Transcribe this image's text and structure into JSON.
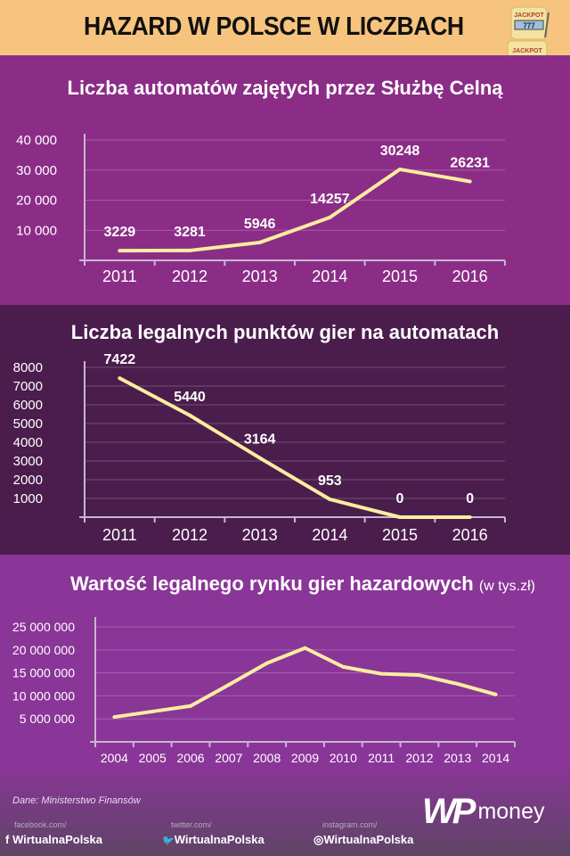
{
  "header": {
    "title": "HAZARD W POLSCE W LICZBACH",
    "slot_text": "JACKPOT",
    "slot_digits": "777"
  },
  "colors": {
    "line": "#fbeda0",
    "peach": "#f7c47f",
    "purple": "#8b2d87",
    "dark": "#4a1d4d"
  },
  "chart_data": [
    {
      "type": "line",
      "title": "Liczba automatów zajętych przez Służbę Celną",
      "categories": [
        "2011",
        "2012",
        "2013",
        "2014",
        "2015",
        "2016"
      ],
      "values": [
        3229,
        3281,
        5946,
        14257,
        30248,
        26231
      ],
      "labels": [
        "3229",
        "3281",
        "5946",
        "14257",
        "30248",
        "26231"
      ],
      "yticks": [
        10000,
        20000,
        30000,
        40000
      ],
      "ytick_labels": [
        "10 000",
        "20 000",
        "30 000",
        "40 000"
      ],
      "ylim": [
        0,
        40000
      ],
      "grid": true
    },
    {
      "type": "line",
      "title": "Liczba legalnych punktów gier na automatach",
      "categories": [
        "2011",
        "2012",
        "2013",
        "2014",
        "2015",
        "2016"
      ],
      "values": [
        7422,
        5440,
        3164,
        953,
        0,
        0
      ],
      "labels": [
        "7422",
        "5440",
        "3164",
        "953",
        "0",
        "0"
      ],
      "yticks": [
        1000,
        2000,
        3000,
        4000,
        5000,
        6000,
        7000,
        8000
      ],
      "ytick_labels": [
        "1000",
        "2000",
        "3000",
        "4000",
        "5000",
        "6000",
        "7000",
        "8000"
      ],
      "ylim": [
        0,
        8000
      ],
      "grid": true
    },
    {
      "type": "line",
      "title": "Wartość legalnego rynku gier hazardowych",
      "subtitle": "(w tys.zł)",
      "categories": [
        "2004",
        "2005",
        "2006",
        "2007",
        "2008",
        "2009",
        "2010",
        "2011",
        "2012",
        "2013",
        "2014"
      ],
      "values": [
        5400000,
        6600000,
        7800000,
        12400000,
        17100000,
        20400000,
        16300000,
        14800000,
        14500000,
        12600000,
        10300000
      ],
      "yticks": [
        5000000,
        10000000,
        15000000,
        20000000,
        25000000
      ],
      "ytick_labels": [
        "5 000 000",
        "10 000 000",
        "15 000 000",
        "20 000 000",
        "25 000 000"
      ],
      "ylim": [
        0,
        25000000
      ],
      "grid": true
    }
  ],
  "footer": {
    "source": "Dane: Ministerstwo Finansów",
    "social": [
      {
        "site": "facebook.com/",
        "handle": "WirtualnaPolska",
        "icon": "facebook-icon",
        "glyph": "f"
      },
      {
        "site": "twitter.com/",
        "handle": "WirtualnaPolska",
        "icon": "twitter-icon",
        "glyph": "🐦"
      },
      {
        "site": "instagram.com/",
        "handle": "WirtualnaPolska",
        "icon": "instagram-icon",
        "glyph": "◎"
      }
    ],
    "logo_wp": "WP",
    "logo_money": "money"
  }
}
